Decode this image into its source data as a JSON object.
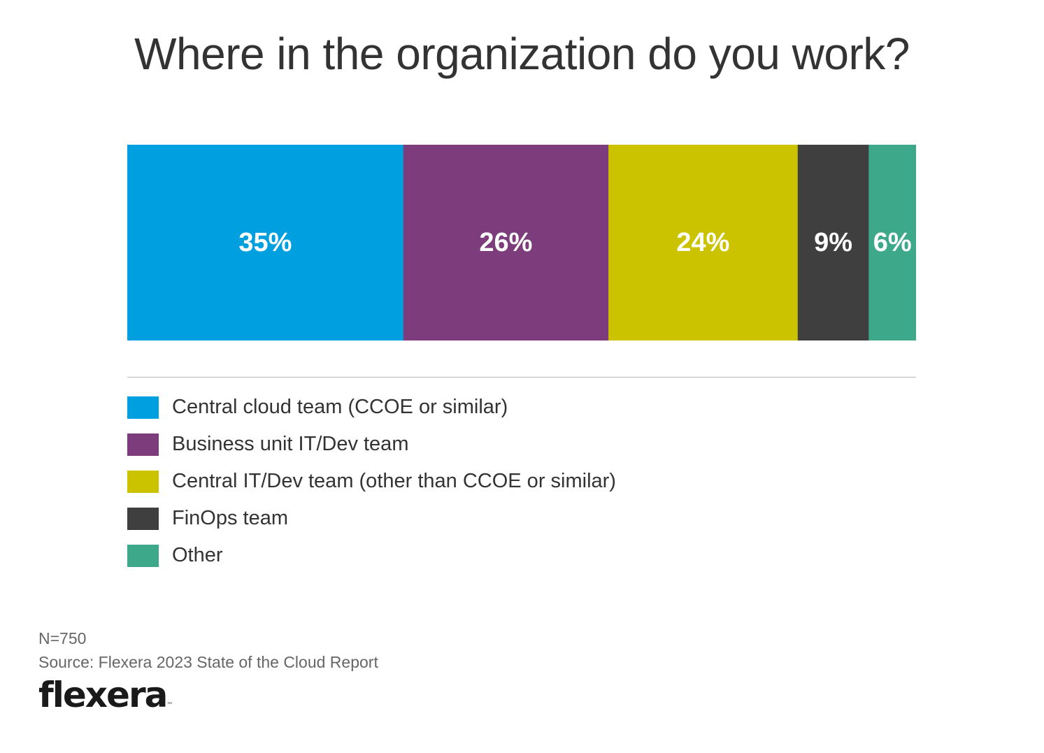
{
  "title": "Where in the organization do you work?",
  "chart_data": {
    "type": "bar",
    "orientation": "horizontal-stacked-100",
    "title": "Where in the organization do you work?",
    "categories": [
      "Central cloud team (CCOE or similar)",
      "Business unit IT/Dev team",
      "Central IT/Dev team (other than CCOE or similar)",
      "FinOps team",
      "Other"
    ],
    "values": [
      35,
      26,
      24,
      9,
      6
    ],
    "labels": [
      "35%",
      "26%",
      "24%",
      "9%",
      "6%"
    ],
    "colors": [
      "#009fdf",
      "#7d3c7b",
      "#ccc300",
      "#3f3f3f",
      "#3da88a"
    ],
    "unit": "%",
    "xlim": [
      0,
      100
    ],
    "legend_position": "bottom"
  },
  "footer": {
    "n": "N=750",
    "source": "Source: Flexera 2023 State of the Cloud Report"
  },
  "logo": {
    "text": "flexera",
    "mark": "™"
  }
}
